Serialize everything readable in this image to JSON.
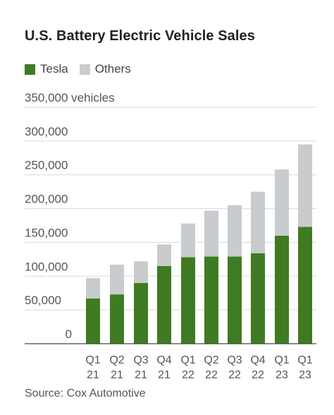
{
  "header": {
    "title": "U.S. Battery Electric Vehicle Sales"
  },
  "footer": {
    "source": "Source: Cox Automotive"
  },
  "colors": {
    "tesla": "#3f7b22",
    "others": "#c8ccce",
    "grid": "#d9d9d9",
    "axis": "#444444"
  },
  "chart_data": {
    "type": "bar",
    "stacked": true,
    "title": "U.S. Battery Electric Vehicle Sales",
    "categories": [
      [
        "Q1",
        "21"
      ],
      [
        "Q2",
        "21"
      ],
      [
        "Q3",
        "21"
      ],
      [
        "Q4",
        "21"
      ],
      [
        "Q1",
        "22"
      ],
      [
        "Q2",
        "22"
      ],
      [
        "Q3",
        "22"
      ],
      [
        "Q4",
        "22"
      ],
      [
        "Q1",
        "23"
      ],
      [
        "Q1",
        "23"
      ]
    ],
    "series": [
      {
        "name": "Tesla",
        "values": [
          67000,
          73000,
          90000,
          115000,
          128000,
          129000,
          129000,
          134000,
          160000,
          173000
        ]
      },
      {
        "name": "Others",
        "values": [
          30000,
          44000,
          32000,
          32000,
          50000,
          68000,
          76000,
          91000,
          98000,
          122000
        ]
      }
    ],
    "ylim": [
      0,
      350000
    ],
    "yticks": [
      {
        "value": 0,
        "label": "0"
      },
      {
        "value": 50000,
        "label": "50,000"
      },
      {
        "value": 100000,
        "label": "100,000"
      },
      {
        "value": 150000,
        "label": "150,000"
      },
      {
        "value": 200000,
        "label": "200,000"
      },
      {
        "value": 250000,
        "label": "250,000"
      },
      {
        "value": 300000,
        "label": "300,000"
      },
      {
        "value": 350000,
        "label": "350,000 vehicles"
      }
    ],
    "grid": true,
    "legend_position": "top-left"
  }
}
